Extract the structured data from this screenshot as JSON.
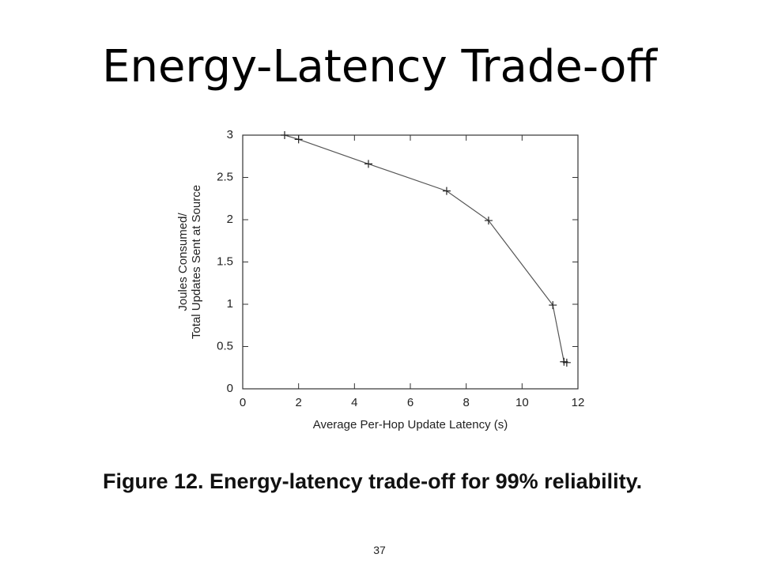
{
  "title": "Energy-Latency Trade-off",
  "chart_data": {
    "type": "line",
    "xlabel": "Average Per-Hop Update Latency (s)",
    "ylabel": [
      "Joules Consumed/",
      "Total Updates Sent at Source"
    ],
    "x": [
      1.5,
      2.0,
      4.5,
      7.3,
      8.8,
      11.1,
      11.5,
      11.6
    ],
    "series": [
      {
        "color": "#555555",
        "values": [
          3.0,
          2.95,
          2.66,
          2.34,
          1.99,
          0.99,
          0.32,
          0.31
        ]
      }
    ],
    "xlim": [
      0,
      12
    ],
    "xticks": [
      0,
      2,
      4,
      6,
      8,
      10,
      12
    ],
    "ylim": [
      0,
      3
    ],
    "yticks": [
      0,
      0.5,
      1,
      1.5,
      2,
      2.5,
      3
    ]
  },
  "caption": "Figure 12. Energy-latency trade-off for 99% reliability.",
  "page_number": "37"
}
